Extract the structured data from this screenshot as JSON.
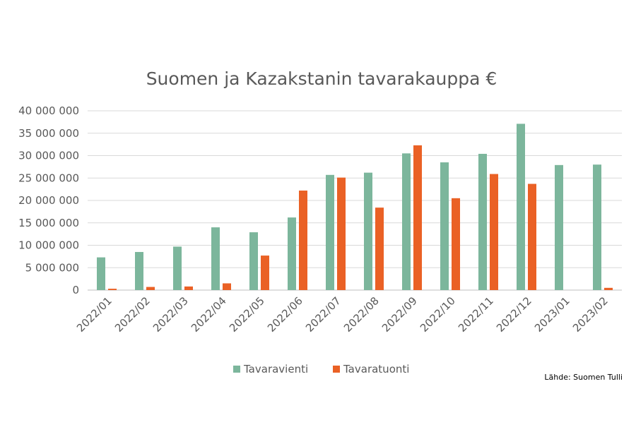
{
  "chart_data": {
    "type": "bar",
    "title": "Suomen ja Kazakstanin tavarakauppa €",
    "categories": [
      "2022/01",
      "2022/02",
      "2022/03",
      "2022/04",
      "2022/05",
      "2022/06",
      "2022/07",
      "2022/08",
      "2022/09",
      "2022/10",
      "2022/11",
      "2022/12",
      "2023/01",
      "2023/02"
    ],
    "series": [
      {
        "name": "Tavaravienti",
        "color": "#7cb69c",
        "values": [
          7300000,
          8500000,
          9700000,
          14000000,
          12900000,
          16200000,
          25700000,
          26200000,
          30500000,
          28500000,
          30400000,
          37100000,
          27900000,
          28000000
        ]
      },
      {
        "name": "Tavaratuonti",
        "color": "#ea6125",
        "values": [
          300000,
          700000,
          800000,
          1500000,
          7700000,
          22200000,
          25100000,
          18400000,
          32300000,
          20500000,
          25900000,
          23700000,
          0,
          500000
        ]
      }
    ],
    "ylim": [
      0,
      40000000
    ],
    "yticks": [
      0,
      5000000,
      10000000,
      15000000,
      20000000,
      25000000,
      30000000,
      35000000,
      40000000
    ],
    "ytick_labels": [
      "0",
      "5 000 000",
      "10 000 000",
      "15 000 000",
      "20 000 000",
      "25 000 000",
      "30 000 000",
      "35 000 000",
      "40 000 000"
    ],
    "grid": true,
    "legend_position": "bottom",
    "source": "Lähde: Suomen Tulli"
  }
}
